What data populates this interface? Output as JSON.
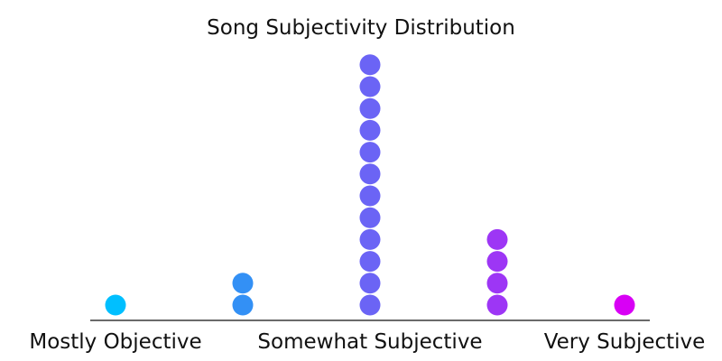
{
  "chart_data": {
    "type": "dot",
    "title": "Song Subjectivity Distribution",
    "xlabel": "",
    "ylabel": "",
    "categories": [
      "",
      "Mostly Objective",
      "",
      "Somewhat Subjective",
      "",
      "Very Subjective"
    ],
    "points": [
      {
        "x": 0.0,
        "count": 1,
        "color": "#00bfff"
      },
      {
        "x": 0.25,
        "count": 2,
        "color": "#3390f5"
      },
      {
        "x": 0.5,
        "count": 12,
        "color": "#6b64f5"
      },
      {
        "x": 0.75,
        "count": 4,
        "color": "#9d36f5"
      },
      {
        "x": 1.0,
        "count": 1,
        "color": "#d800f5"
      }
    ],
    "tick_labels": [
      {
        "x": 0.0,
        "label": "Mostly Objective"
      },
      {
        "x": 0.5,
        "label": "Somewhat Subjective"
      },
      {
        "x": 1.0,
        "label": "Very Subjective"
      }
    ],
    "xlim": [
      -0.05,
      1.05
    ],
    "grid": false,
    "legend": "none"
  }
}
